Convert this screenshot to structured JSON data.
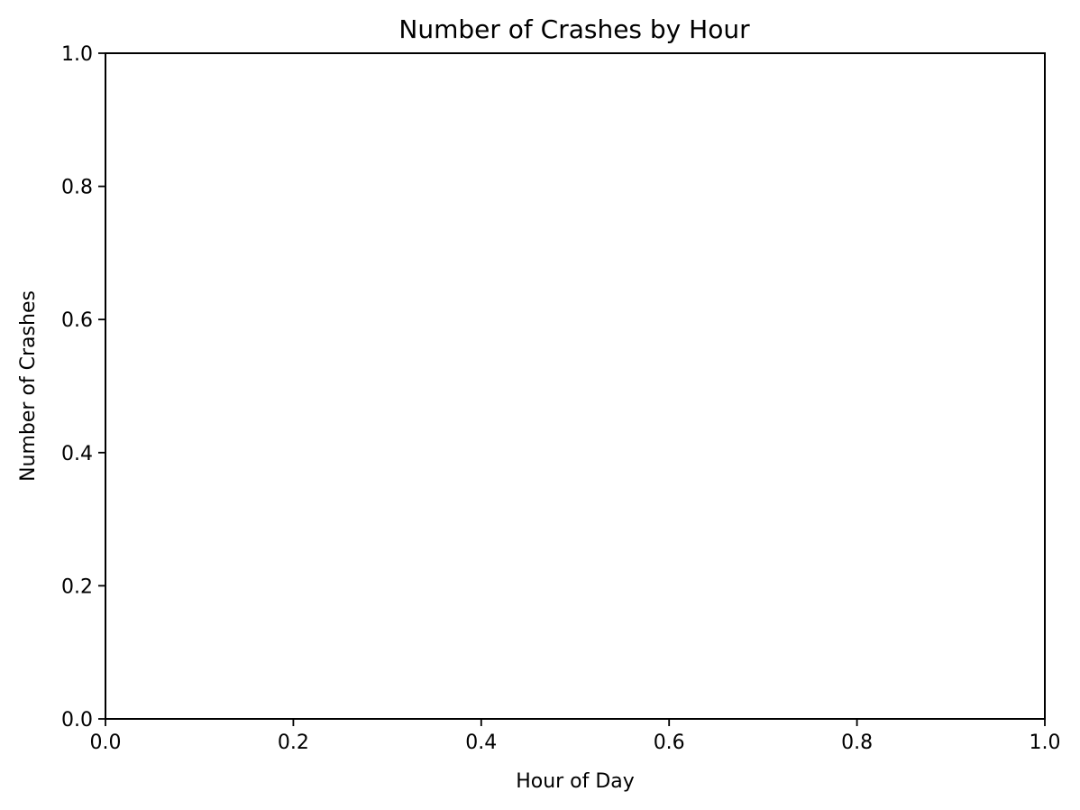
{
  "chart_data": {
    "type": "bar",
    "title": "Number of Crashes by Hour",
    "xlabel": "Hour of Day",
    "ylabel": "Number of Crashes",
    "xlim": [
      0.0,
      1.0
    ],
    "ylim": [
      0.0,
      1.0
    ],
    "xticks": [
      "0.0",
      "0.2",
      "0.4",
      "0.6",
      "0.8",
      "1.0"
    ],
    "yticks": [
      "0.0",
      "0.2",
      "0.4",
      "0.6",
      "0.8",
      "1.0"
    ],
    "grid": false,
    "categories": [],
    "values": []
  }
}
